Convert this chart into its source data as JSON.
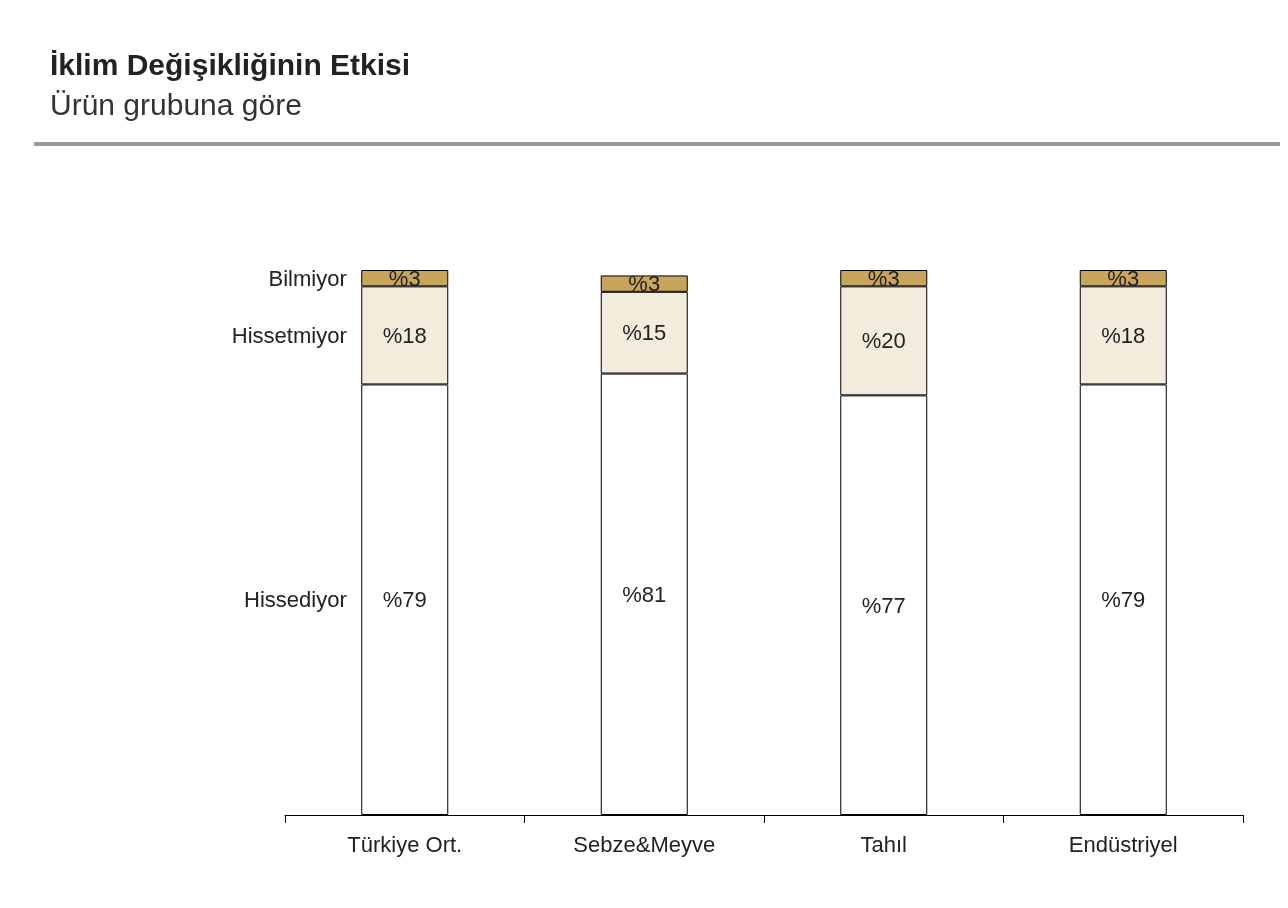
{
  "chart_data": {
    "type": "bar",
    "title": "İklim Değişikliğinin Etkisi",
    "subtitle": "Ürün grubuna göre",
    "categories": [
      "Türkiye Ort.",
      "Sebze&Meyve",
      "Tahıl",
      "Endüstriyel"
    ],
    "stacked": true,
    "series": [
      {
        "name": "Hissediyor",
        "color": "#ffffff",
        "values": [
          79,
          81,
          77,
          79
        ],
        "value_labels": [
          "%79",
          "%81",
          "%77",
          "%79"
        ]
      },
      {
        "name": "Hissetmiyor",
        "color": "#f3ecdc",
        "values": [
          18,
          15,
          20,
          18
        ],
        "value_labels": [
          "%18",
          "%15",
          "%20",
          "%18"
        ]
      },
      {
        "name": "Bilmiyor",
        "color": "#c9a45c",
        "values": [
          3,
          3,
          3,
          3
        ],
        "value_labels": [
          "%3",
          "%3",
          "%3",
          "%3"
        ]
      }
    ]
  }
}
